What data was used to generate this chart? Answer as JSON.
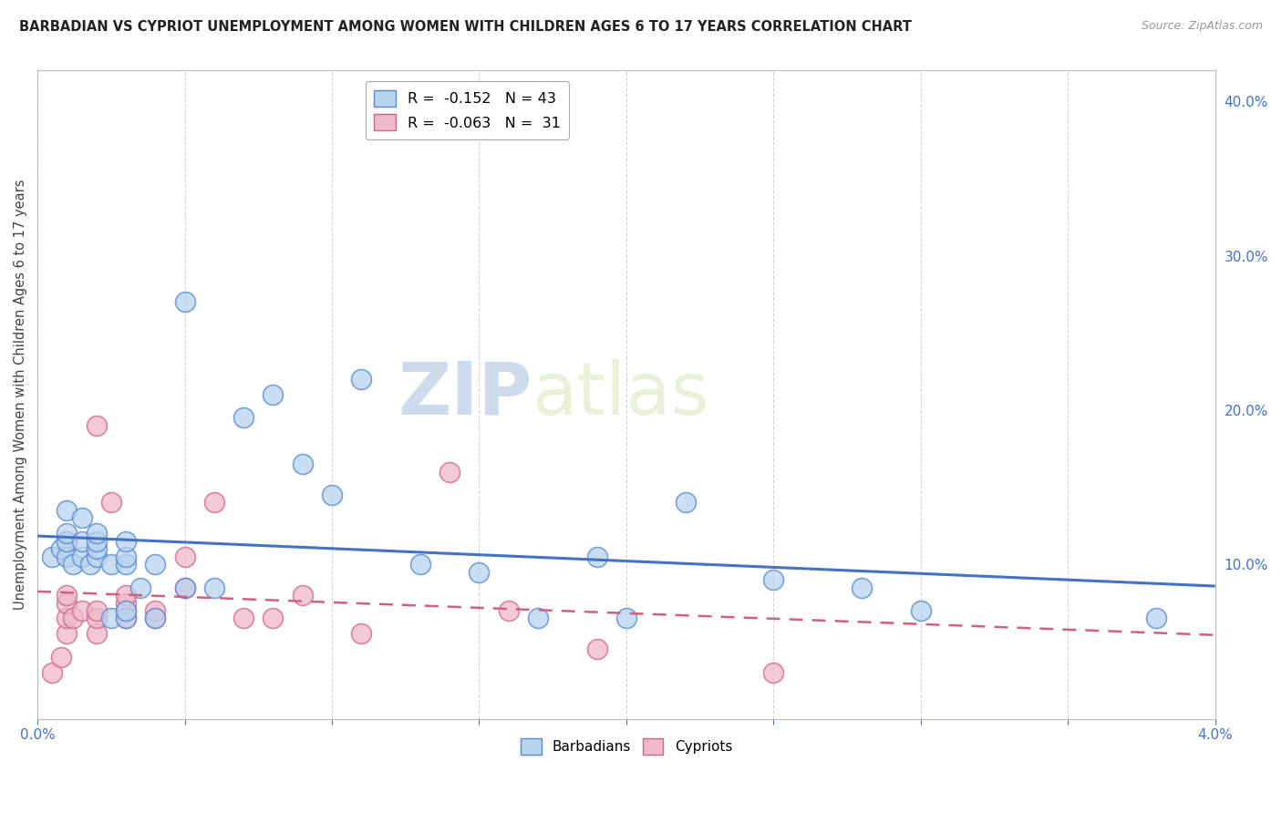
{
  "title": "BARBADIAN VS CYPRIOT UNEMPLOYMENT AMONG WOMEN WITH CHILDREN AGES 6 TO 17 YEARS CORRELATION CHART",
  "source": "Source: ZipAtlas.com",
  "ylabel": "Unemployment Among Women with Children Ages 6 to 17 years",
  "xlim": [
    0.0,
    0.04
  ],
  "ylim": [
    0.0,
    0.42
  ],
  "x_ticks": [
    0.0,
    0.005,
    0.01,
    0.015,
    0.02,
    0.025,
    0.03,
    0.035,
    0.04
  ],
  "x_tick_labels": [
    "0.0%",
    "",
    "",
    "",
    "",
    "",
    "",
    "",
    "4.0%"
  ],
  "y_ticks_right": [
    0.0,
    0.1,
    0.2,
    0.3,
    0.4
  ],
  "y_tick_labels_right": [
    "",
    "10.0%",
    "20.0%",
    "30.0%",
    "40.0%"
  ],
  "legend_r1": "R =  -0.152",
  "legend_n1": "N = 43",
  "legend_r2": "R =  -0.063",
  "legend_n2": "N =  31",
  "barbadian_color": "#b8d4f0",
  "cypriot_color": "#f0b8cc",
  "barbadian_edge_color": "#5588cc",
  "cypriot_edge_color": "#cc6688",
  "barbadian_line_color": "#4472c4",
  "cypriot_line_color": "#d06080",
  "watermark_zip": "ZIP",
  "watermark_atlas": "atlas",
  "background_color": "#ffffff",
  "grid_color": "#cccccc",
  "barbadian_x": [
    0.0005,
    0.0008,
    0.001,
    0.001,
    0.001,
    0.001,
    0.0012,
    0.0015,
    0.0015,
    0.0015,
    0.0018,
    0.002,
    0.002,
    0.002,
    0.002,
    0.0025,
    0.0025,
    0.003,
    0.003,
    0.003,
    0.003,
    0.003,
    0.0035,
    0.004,
    0.004,
    0.005,
    0.005,
    0.006,
    0.007,
    0.008,
    0.009,
    0.01,
    0.011,
    0.013,
    0.015,
    0.017,
    0.019,
    0.02,
    0.022,
    0.025,
    0.028,
    0.03,
    0.038
  ],
  "barbadian_y": [
    0.105,
    0.11,
    0.105,
    0.115,
    0.12,
    0.135,
    0.1,
    0.105,
    0.115,
    0.13,
    0.1,
    0.105,
    0.11,
    0.115,
    0.12,
    0.065,
    0.1,
    0.065,
    0.07,
    0.1,
    0.105,
    0.115,
    0.085,
    0.065,
    0.1,
    0.085,
    0.27,
    0.085,
    0.195,
    0.21,
    0.165,
    0.145,
    0.22,
    0.1,
    0.095,
    0.065,
    0.105,
    0.065,
    0.14,
    0.09,
    0.085,
    0.07,
    0.065
  ],
  "cypriot_x": [
    0.0005,
    0.0008,
    0.001,
    0.001,
    0.001,
    0.001,
    0.001,
    0.0012,
    0.0015,
    0.002,
    0.002,
    0.002,
    0.002,
    0.0025,
    0.003,
    0.003,
    0.003,
    0.003,
    0.004,
    0.004,
    0.005,
    0.005,
    0.006,
    0.007,
    0.008,
    0.009,
    0.011,
    0.014,
    0.016,
    0.019,
    0.025
  ],
  "cypriot_y": [
    0.03,
    0.04,
    0.055,
    0.065,
    0.075,
    0.08,
    0.115,
    0.065,
    0.07,
    0.055,
    0.065,
    0.07,
    0.19,
    0.14,
    0.065,
    0.07,
    0.075,
    0.08,
    0.065,
    0.07,
    0.085,
    0.105,
    0.14,
    0.065,
    0.065,
    0.08,
    0.055,
    0.16,
    0.07,
    0.045,
    0.03
  ],
  "barbadian_line_x": [
    0.0,
    0.04
  ],
  "barbadian_line_y": [
    0.135,
    0.075
  ],
  "cypriot_line_x": [
    0.0,
    0.032
  ],
  "cypriot_line_y": [
    0.115,
    0.075
  ]
}
